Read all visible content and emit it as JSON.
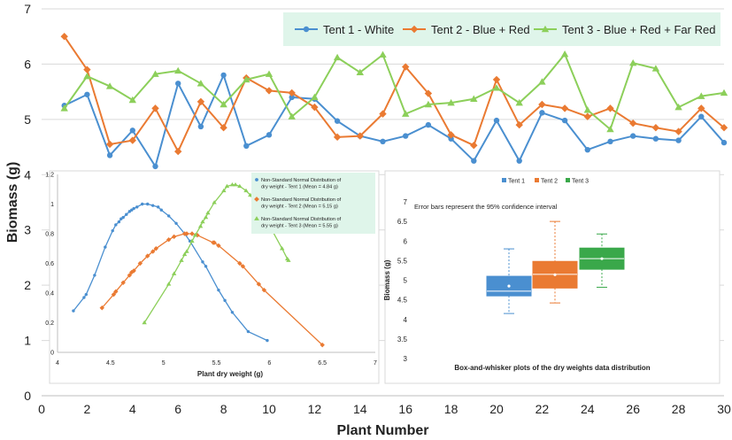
{
  "chart_data": [
    {
      "type": "line",
      "xlabel": "Plant Number",
      "ylabel": "Biomass (g)",
      "xlim": [
        0,
        30
      ],
      "ylim": [
        0,
        7
      ],
      "xticks": [
        0,
        2,
        4,
        6,
        8,
        10,
        12,
        14,
        16,
        18,
        20,
        22,
        24,
        26,
        28,
        30
      ],
      "yticks": [
        0,
        1,
        2,
        3,
        4,
        5,
        6,
        7
      ],
      "grid": "horizontal",
      "legend_position": "top-right",
      "x": [
        1,
        2,
        3,
        4,
        5,
        6,
        7,
        8,
        9,
        10,
        11,
        12,
        13,
        14,
        15,
        16,
        17,
        18,
        19,
        20,
        21,
        22,
        23,
        24,
        25,
        26,
        27,
        28,
        29,
        30
      ],
      "series": [
        {
          "name": "Tent 1 - White",
          "color": "#4a8fd0",
          "marker": "circle",
          "values": [
            5.25,
            5.45,
            4.35,
            4.8,
            4.15,
            5.65,
            4.87,
            5.8,
            4.52,
            4.72,
            5.4,
            5.37,
            4.97,
            4.7,
            4.6,
            4.7,
            4.9,
            4.65,
            4.25,
            4.98,
            4.25,
            5.12,
            4.98,
            4.45,
            4.6,
            4.7,
            4.65,
            4.62,
            5.05,
            4.58
          ]
        },
        {
          "name": "Tent 2 - Blue + Red",
          "color": "#ea7a32",
          "marker": "diamond",
          "values": [
            6.5,
            5.9,
            4.55,
            4.62,
            5.2,
            4.42,
            5.32,
            4.85,
            5.75,
            5.52,
            5.48,
            5.22,
            4.68,
            4.7,
            5.1,
            5.95,
            5.47,
            4.72,
            4.53,
            5.72,
            4.9,
            5.27,
            5.2,
            5.05,
            5.2,
            4.93,
            4.85,
            4.78,
            5.2,
            4.85
          ]
        },
        {
          "name": "Tent 3 - Blue + Red + Far Red",
          "color": "#8ccf5a",
          "marker": "triangle",
          "values": [
            5.2,
            5.78,
            5.6,
            5.35,
            5.82,
            5.88,
            5.65,
            5.27,
            5.72,
            5.82,
            5.05,
            5.4,
            6.12,
            5.85,
            6.17,
            5.1,
            5.27,
            5.3,
            5.37,
            5.57,
            5.3,
            5.68,
            6.18,
            5.17,
            4.82,
            6.02,
            5.92,
            5.22,
            5.42,
            5.48
          ]
        }
      ]
    },
    {
      "type": "line",
      "xlabel": "Plant dry weight (g)",
      "ylabel": "",
      "xlim": [
        4,
        7
      ],
      "ylim": [
        0,
        1.2
      ],
      "xticks": [
        "4",
        "4.5",
        "5",
        "5.5",
        "6",
        "6.5",
        "7"
      ],
      "yticks": [
        "0",
        "0.2",
        "0.4",
        "0.6",
        "0.8",
        "1",
        "1.2"
      ],
      "legend_position": "top-right",
      "series": [
        {
          "name": "Non-Standard Normal Distribution of dry weight - Tent 1 (Mean = 4.84 g)",
          "color": "#4a8fd0",
          "marker": "circle",
          "points": [
            [
              4.15,
              0.28
            ],
            [
              4.25,
              0.37
            ],
            [
              4.27,
              0.39
            ],
            [
              4.35,
              0.52
            ],
            [
              4.45,
              0.71
            ],
            [
              4.52,
              0.82
            ],
            [
              4.55,
              0.86
            ],
            [
              4.58,
              0.88
            ],
            [
              4.6,
              0.9
            ],
            [
              4.62,
              0.91
            ],
            [
              4.65,
              0.93
            ],
            [
              4.68,
              0.95
            ],
            [
              4.7,
              0.96
            ],
            [
              4.72,
              0.97
            ],
            [
              4.75,
              0.98
            ],
            [
              4.8,
              1.0
            ],
            [
              4.85,
              1.0
            ],
            [
              4.9,
              0.99
            ],
            [
              4.95,
              0.98
            ],
            [
              4.98,
              0.96
            ],
            [
              5.05,
              0.92
            ],
            [
              5.12,
              0.87
            ],
            [
              5.2,
              0.8
            ],
            [
              5.25,
              0.75
            ],
            [
              5.37,
              0.61
            ],
            [
              5.4,
              0.58
            ],
            [
              5.52,
              0.42
            ],
            [
              5.58,
              0.35
            ],
            [
              5.65,
              0.27
            ],
            [
              5.8,
              0.14
            ],
            [
              5.98,
              0.08
            ]
          ]
        },
        {
          "name": "Non-Standard Normal Distribution of dry weight - Tent 2 (Mean = 5.15 g)",
          "color": "#ea7a32",
          "marker": "diamond",
          "points": [
            [
              4.42,
              0.3
            ],
            [
              4.53,
              0.39
            ],
            [
              4.55,
              0.41
            ],
            [
              4.62,
              0.47
            ],
            [
              4.68,
              0.52
            ],
            [
              4.7,
              0.54
            ],
            [
              4.72,
              0.55
            ],
            [
              4.78,
              0.6
            ],
            [
              4.85,
              0.65
            ],
            [
              4.9,
              0.68
            ],
            [
              4.93,
              0.7
            ],
            [
              5.05,
              0.76
            ],
            [
              5.1,
              0.78
            ],
            [
              5.2,
              0.8
            ],
            [
              5.22,
              0.8
            ],
            [
              5.27,
              0.8
            ],
            [
              5.32,
              0.79
            ],
            [
              5.47,
              0.74
            ],
            [
              5.48,
              0.74
            ],
            [
              5.52,
              0.72
            ],
            [
              5.72,
              0.6
            ],
            [
              5.75,
              0.58
            ],
            [
              5.9,
              0.46
            ],
            [
              5.95,
              0.42
            ],
            [
              6.5,
              0.05
            ]
          ]
        },
        {
          "name": "Non-Standard Normal Distribution of dry weight - Tent 3 (Mean = 5.55 g)",
          "color": "#8ccf5a",
          "marker": "triangle",
          "points": [
            [
              4.82,
              0.2
            ],
            [
              5.05,
              0.46
            ],
            [
              5.1,
              0.53
            ],
            [
              5.17,
              0.62
            ],
            [
              5.2,
              0.66
            ],
            [
              5.22,
              0.68
            ],
            [
              5.27,
              0.75
            ],
            [
              5.3,
              0.79
            ],
            [
              5.35,
              0.85
            ],
            [
              5.37,
              0.88
            ],
            [
              5.4,
              0.91
            ],
            [
              5.42,
              0.94
            ],
            [
              5.48,
              1.01
            ],
            [
              5.57,
              1.09
            ],
            [
              5.6,
              1.12
            ],
            [
              5.65,
              1.13
            ],
            [
              5.68,
              1.13
            ],
            [
              5.72,
              1.12
            ],
            [
              5.78,
              1.09
            ],
            [
              5.82,
              1.06
            ],
            [
              5.85,
              1.03
            ],
            [
              5.88,
              1.0
            ],
            [
              5.92,
              0.95
            ],
            [
              6.02,
              0.83
            ],
            [
              6.12,
              0.7
            ],
            [
              6.17,
              0.63
            ],
            [
              6.18,
              0.62
            ]
          ]
        }
      ]
    },
    {
      "type": "box",
      "title": "Box-and-whisker plots of the dry weights data distribution",
      "annotation": "Error bars represent the 95% confidence interval",
      "xlabel": "",
      "ylabel": "Biomass (g)",
      "ylim": [
        3,
        7
      ],
      "yticks": [
        "3",
        "3.5",
        "4",
        "4.5",
        "5",
        "5.5",
        "6",
        "6.5",
        "7"
      ],
      "legend_position": "top",
      "series": [
        {
          "name": "Tent 1",
          "color": "#4a8fd0",
          "q1": 4.6,
          "median": 4.72,
          "q3": 5.1,
          "whisker_low": 4.15,
          "whisker_high": 5.8
        },
        {
          "name": "Tent 2",
          "color": "#ea7a32",
          "q1": 4.8,
          "median": 5.15,
          "q3": 5.48,
          "whisker_low": 4.42,
          "whisker_high": 6.5
        },
        {
          "name": "Tent 3",
          "color": "#3aa84a",
          "q1": 5.28,
          "median": 5.55,
          "q3": 5.82,
          "whisker_low": 4.82,
          "whisker_high": 6.18
        }
      ]
    }
  ]
}
